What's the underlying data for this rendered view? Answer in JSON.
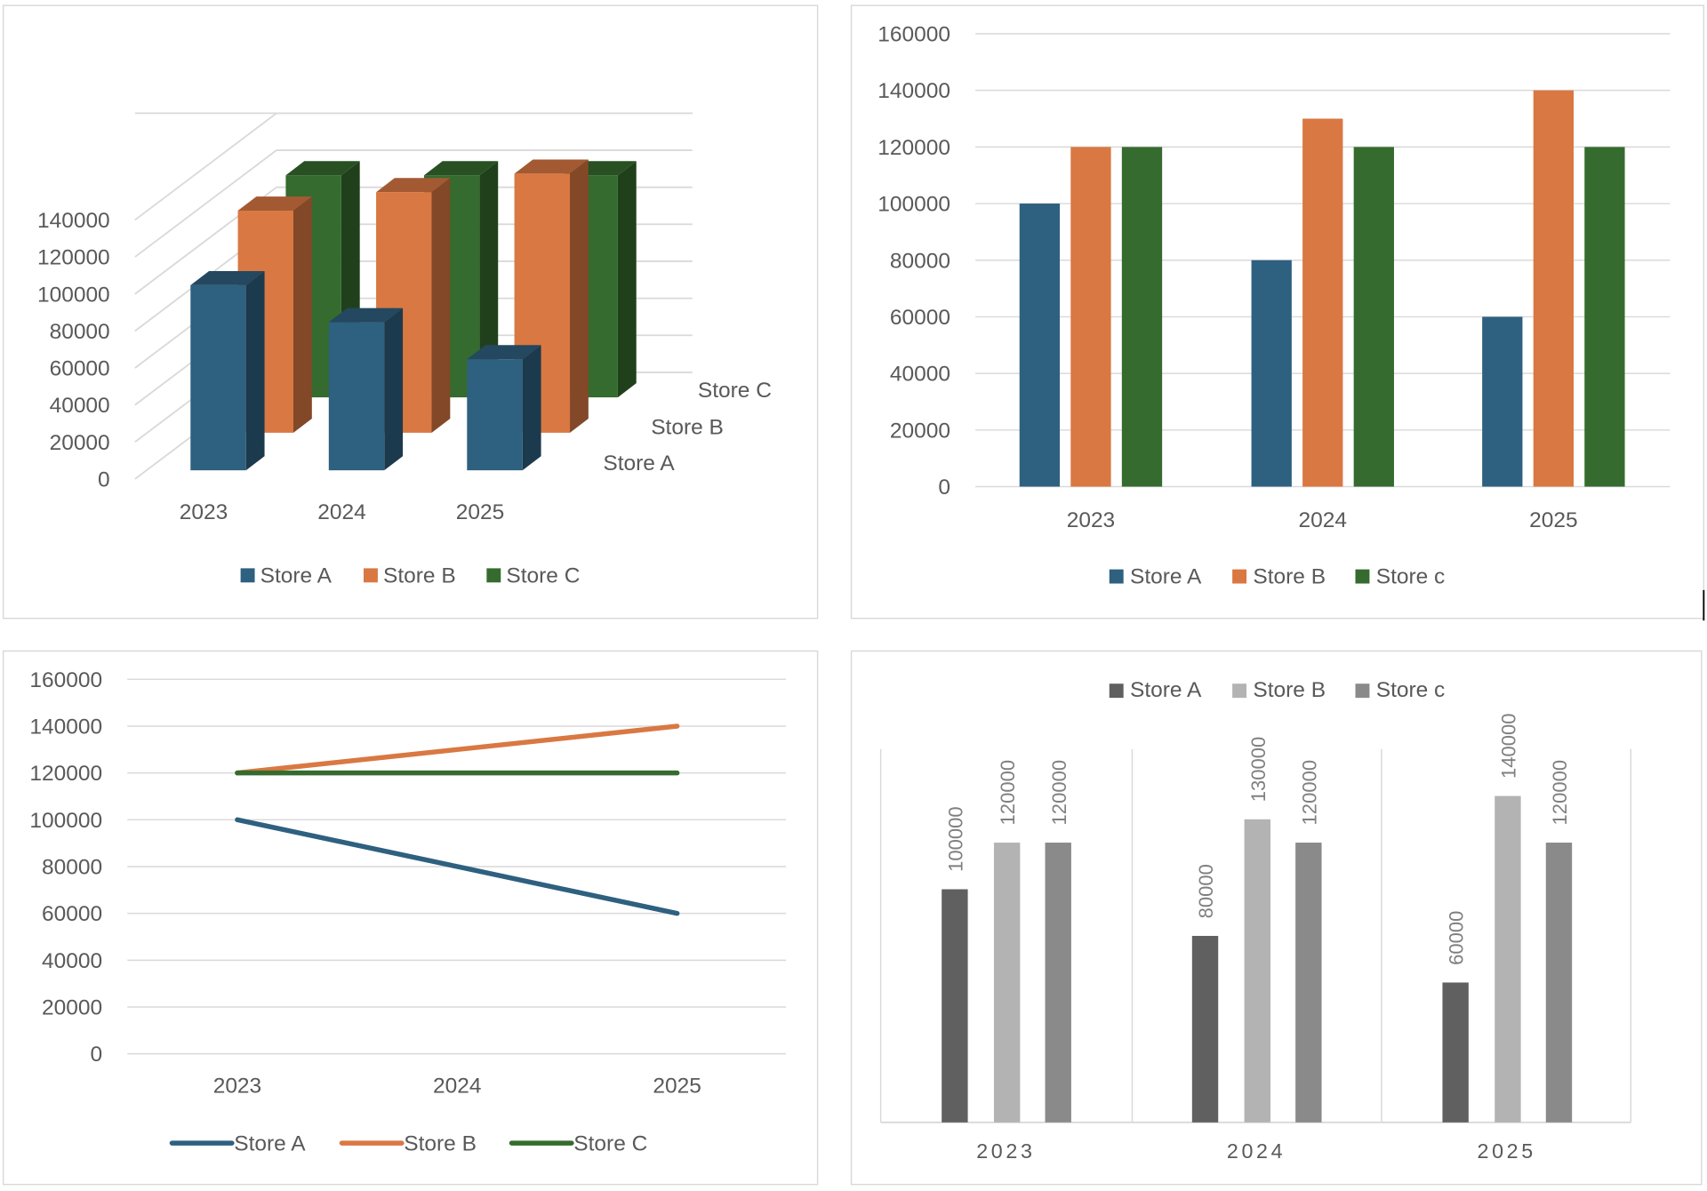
{
  "chart_data": [
    {
      "type": "bar",
      "variant": "3d-clustered-depth",
      "categories": [
        "2023",
        "2024",
        "2025"
      ],
      "yticks": [
        "0",
        "20000",
        "40000",
        "60000",
        "80000",
        "100000",
        "120000",
        "140000"
      ],
      "ylim": [
        0,
        140000
      ],
      "grid": true,
      "legend": "bottom",
      "series": [
        {
          "name": "Store A",
          "values": [
            100000,
            80000,
            60000
          ],
          "color": "#2e6080"
        },
        {
          "name": "Store B",
          "values": [
            120000,
            130000,
            140000
          ],
          "color": "#d97842"
        },
        {
          "name": "Store C",
          "values": [
            120000,
            120000,
            120000
          ],
          "color": "#356b2e"
        }
      ],
      "depth_labels": [
        "Store A",
        "Store B",
        "Store C"
      ]
    },
    {
      "type": "bar",
      "categories": [
        "2023",
        "2024",
        "2025"
      ],
      "yticks": [
        "0",
        "20000",
        "40000",
        "60000",
        "80000",
        "100000",
        "120000",
        "140000",
        "160000"
      ],
      "ylim": [
        0,
        160000
      ],
      "grid": true,
      "legend": "bottom",
      "series": [
        {
          "name": "Store A",
          "values": [
            100000,
            80000,
            60000
          ],
          "color": "#2e6080"
        },
        {
          "name": "Store B",
          "values": [
            120000,
            130000,
            140000
          ],
          "color": "#d97842"
        },
        {
          "name": "Store c",
          "values": [
            120000,
            120000,
            120000
          ],
          "color": "#356b2e"
        }
      ]
    },
    {
      "type": "line",
      "categories": [
        "2023",
        "2024",
        "2025"
      ],
      "yticks": [
        "0",
        "20000",
        "40000",
        "60000",
        "80000",
        "100000",
        "120000",
        "140000",
        "160000"
      ],
      "ylim": [
        0,
        160000
      ],
      "grid": true,
      "legend": "bottom",
      "series": [
        {
          "name": "Store A",
          "values": [
            100000,
            80000,
            60000
          ],
          "color": "#2e6080"
        },
        {
          "name": "Store B",
          "values": [
            120000,
            130000,
            140000
          ],
          "color": "#d97842"
        },
        {
          "name": "Store C",
          "values": [
            120000,
            120000,
            120000
          ],
          "color": "#356b2e"
        }
      ]
    },
    {
      "type": "bar",
      "categories": [
        "2023",
        "2024",
        "2025"
      ],
      "ylim": [
        0,
        140000
      ],
      "grid": false,
      "legend": "top",
      "data_labels": true,
      "series": [
        {
          "name": "Store A",
          "values": [
            100000,
            80000,
            60000
          ],
          "labels": [
            "100000",
            "80000",
            "60000"
          ],
          "color": "#606060"
        },
        {
          "name": "Store B",
          "values": [
            120000,
            130000,
            140000
          ],
          "labels": [
            "120000",
            "130000",
            "140000"
          ],
          "color": "#b3b3b3"
        },
        {
          "name": "Store c",
          "values": [
            120000,
            120000,
            120000
          ],
          "labels": [
            "120000",
            "120000",
            "120000"
          ],
          "color": "#8a8a8a"
        }
      ]
    }
  ]
}
